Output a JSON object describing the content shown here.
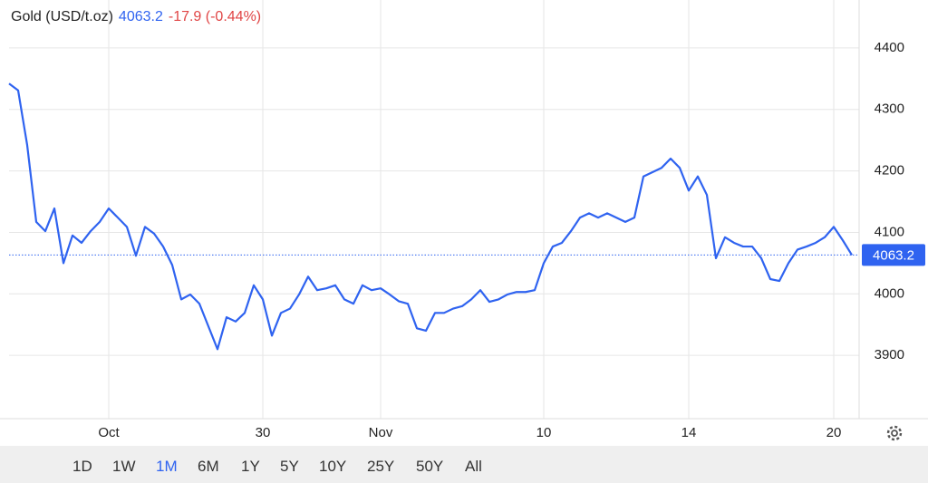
{
  "chart_data": {
    "type": "line",
    "title": "Gold (USD/t.oz)",
    "last": "4063.2",
    "change": "-17.9 (-0.44%)",
    "categories": [
      null,
      null,
      null,
      null,
      null,
      null,
      null,
      null,
      null,
      null,
      null,
      "Oct",
      null,
      null,
      null,
      null,
      null,
      null,
      null,
      null,
      null,
      null,
      null,
      null,
      null,
      null,
      null,
      null,
      "30",
      null,
      null,
      null,
      null,
      null,
      null,
      null,
      null,
      null,
      null,
      null,
      null,
      "Nov",
      null,
      null,
      null,
      null,
      null,
      null,
      null,
      null,
      null,
      null,
      null,
      null,
      null,
      null,
      null,
      null,
      null,
      "10",
      null,
      null,
      null,
      null,
      null,
      null,
      null,
      null,
      null,
      null,
      null,
      null,
      null,
      null,
      null,
      "14",
      null,
      null,
      null,
      null,
      null,
      null,
      null,
      null,
      null,
      null,
      null,
      null,
      null,
      null,
      null,
      "20",
      null,
      null
    ],
    "series": [
      {
        "name": "Gold",
        "color": "#2f63f0",
        "values": [
          4342,
          4331,
          4242,
          4117,
          4102,
          4139,
          4050,
          4095,
          4083,
          4102,
          4117,
          4139,
          4124,
          4109,
          4062,
          4109,
          4098,
          4077,
          4047,
          3991,
          3999,
          3984,
          3947,
          3910,
          3962,
          3955,
          3969,
          4014,
          3991,
          3932,
          3969,
          3976,
          3999,
          4028,
          4006,
          4009,
          4014,
          3991,
          3984,
          4014,
          4006,
          4009,
          3999,
          3988,
          3984,
          3944,
          3940,
          3969,
          3969,
          3976,
          3980,
          3991,
          4006,
          3987,
          3991,
          3999,
          4003,
          4003,
          4006,
          4050,
          4077,
          4083,
          4102,
          4124,
          4131,
          4124,
          4131,
          4124,
          4117,
          4124,
          4191,
          4198,
          4205,
          4220,
          4205,
          4168,
          4191,
          4161,
          4058,
          4092,
          4083,
          4077,
          4077,
          4058,
          4024,
          4021,
          4050,
          4072,
          4077,
          4083,
          4092,
          4109,
          4087,
          4063.2
        ]
      }
    ],
    "ylim": [
      3797,
      4478
    ],
    "yticks": [
      3900,
      4000,
      4100,
      4200,
      4300,
      4400
    ],
    "grid": true,
    "range_buttons": [
      "1D",
      "1W",
      "1M",
      "6M",
      "1Y",
      "5Y",
      "10Y",
      "25Y",
      "50Y",
      "All"
    ],
    "active_range": "1M"
  }
}
